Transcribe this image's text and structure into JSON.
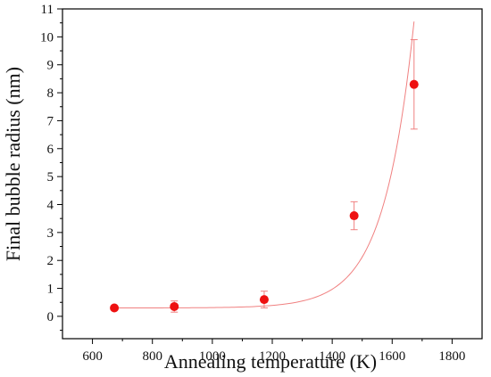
{
  "chart_data": {
    "type": "scatter",
    "xlabel": "Annealing temperature  (K)",
    "ylabel": "Final bubble radius (nm)",
    "xlim": [
      500,
      1900
    ],
    "ylim": [
      -0.8,
      11
    ],
    "xticks": [
      600,
      800,
      1000,
      1200,
      1400,
      1600,
      1800
    ],
    "yticks": [
      0,
      1,
      2,
      3,
      4,
      5,
      6,
      7,
      8,
      9,
      10,
      11
    ],
    "grid": false,
    "series": [
      {
        "color": "#ee1111",
        "points": [
          {
            "x": 673,
            "y": 0.3,
            "err": 0.05
          },
          {
            "x": 873,
            "y": 0.35,
            "err": 0.2
          },
          {
            "x": 1173,
            "y": 0.6,
            "err": 0.3
          },
          {
            "x": 1473,
            "y": 3.6,
            "err": 0.5
          },
          {
            "x": 1673,
            "y": 8.3,
            "err": 1.6
          }
        ]
      }
    ],
    "fit_curve": {
      "color": "#f08080",
      "x_start": 673,
      "x_end": 1673,
      "baseline": 0.3,
      "amplitude": 0.00047,
      "rate": 0.00999,
      "x0": 673
    }
  }
}
